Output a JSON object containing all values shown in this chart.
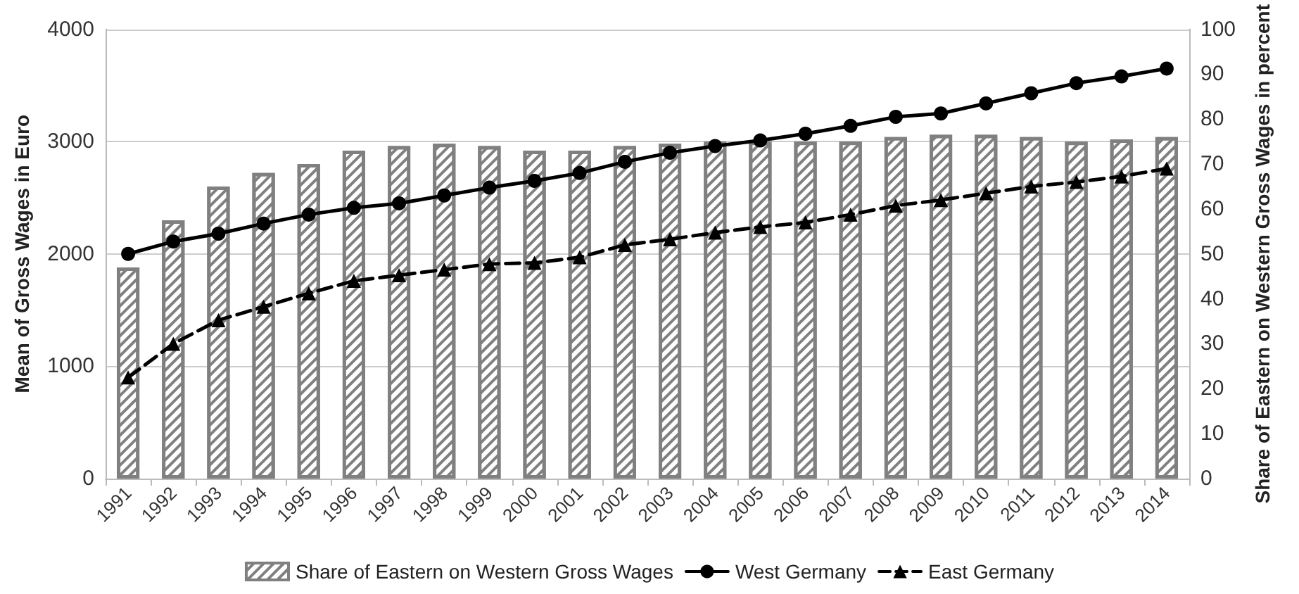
{
  "chart_data": {
    "type": "bar",
    "ylabel": "Mean of Gross Wages in Euro",
    "y2label": "Share of Eastern on Western Gross Wages in percent",
    "categories": [
      "1991",
      "1992",
      "1993",
      "1994",
      "1995",
      "1996",
      "1997",
      "1998",
      "1999",
      "2000",
      "2001",
      "2002",
      "2003",
      "2004",
      "2005",
      "2006",
      "2007",
      "2008",
      "2009",
      "2010",
      "2011",
      "2012",
      "2013",
      "2014"
    ],
    "series": [
      {
        "name": "Share of Eastern on Western Gross Wages",
        "axis": "y2",
        "color": "#808080",
        "values": [
          47,
          57.5,
          65,
          68,
          70,
          73,
          74,
          74.5,
          74,
          73,
          73,
          74,
          74.5,
          75,
          75,
          75,
          75,
          76,
          76.5,
          76.5,
          76,
          75,
          75.5,
          76
        ]
      },
      {
        "name": "West Germany",
        "type": "line",
        "color": "#000000",
        "marker": "circle",
        "line_style": "solid",
        "values": [
          2000,
          2110,
          2180,
          2270,
          2350,
          2410,
          2450,
          2520,
          2590,
          2650,
          2720,
          2820,
          2900,
          2960,
          3010,
          3070,
          3140,
          3220,
          3250,
          3340,
          3430,
          3520,
          3580,
          3650
        ]
      },
      {
        "name": "East Germany",
        "type": "line",
        "color": "#000000",
        "marker": "triangle",
        "line_style": "dashed",
        "values": [
          900,
          1200,
          1410,
          1530,
          1650,
          1760,
          1810,
          1860,
          1910,
          1920,
          1970,
          2080,
          2130,
          2190,
          2240,
          2280,
          2350,
          2430,
          2480,
          2540,
          2600,
          2640,
          2690,
          2760
        ]
      }
    ],
    "ylim": [
      0,
      4000
    ],
    "yticks": [
      0,
      1000,
      2000,
      3000,
      4000
    ],
    "y2lim": [
      0,
      100
    ],
    "y2ticks": [
      0,
      10,
      20,
      30,
      40,
      50,
      60,
      70,
      80,
      90,
      100
    ],
    "grid": "y",
    "legend": "bottom"
  }
}
